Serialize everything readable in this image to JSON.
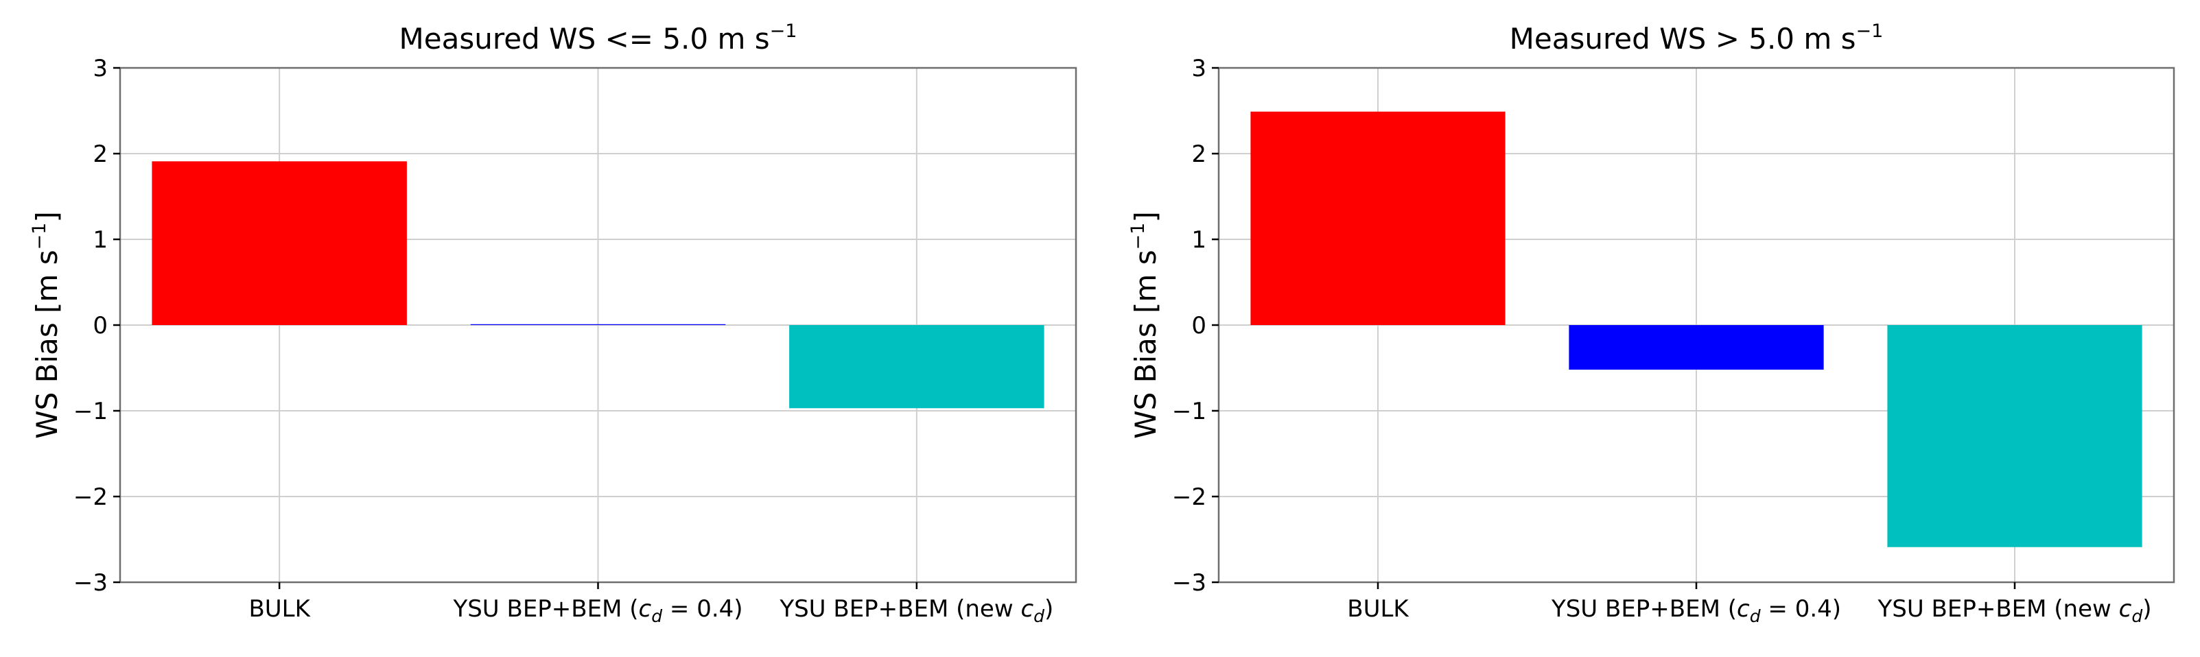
{
  "chart_data": [
    {
      "type": "bar",
      "title": "Measured WS <= 5.0 m s",
      "title_superscript": "−1",
      "ylabel": "WS Bias [m s",
      "ylabel_superscript": "−1",
      "ylabel_suffix": "]",
      "ylim": [
        -3,
        3
      ],
      "yticks": [
        -3,
        -2,
        -1,
        0,
        1,
        2,
        3
      ],
      "ytick_labels": [
        "−3",
        "−2",
        "−1",
        "0",
        "1",
        "2",
        "3"
      ],
      "grid": true,
      "categories": [
        {
          "text": "BULK"
        },
        {
          "text": "YSU BEP+BEM (",
          "math": "c",
          "math_sub": "d",
          "math_rest": " = 0.4",
          "suffix": ")"
        },
        {
          "text": "YSU BEP+BEM (new ",
          "math": "c",
          "math_sub": "d",
          "math_rest": "",
          "suffix": ")"
        }
      ],
      "values": [
        1.91,
        0.01,
        -0.97
      ],
      "colors": [
        "#ff0000",
        "#0000ff",
        "#00bfbf"
      ]
    },
    {
      "type": "bar",
      "title": "Measured WS > 5.0 m s",
      "title_superscript": "−1",
      "ylabel": "WS Bias [m s",
      "ylabel_superscript": "−1",
      "ylabel_suffix": "]",
      "ylim": [
        -3,
        3
      ],
      "yticks": [
        -3,
        -2,
        -1,
        0,
        1,
        2,
        3
      ],
      "ytick_labels": [
        "−3",
        "−2",
        "−1",
        "0",
        "1",
        "2",
        "3"
      ],
      "grid": true,
      "categories": [
        {
          "text": "BULK"
        },
        {
          "text": "YSU BEP+BEM (",
          "math": "c",
          "math_sub": "d",
          "math_rest": " = 0.4",
          "suffix": ")"
        },
        {
          "text": "YSU BEP+BEM (new ",
          "math": "c",
          "math_sub": "d",
          "math_rest": "",
          "suffix": ")"
        }
      ],
      "values": [
        2.49,
        -0.52,
        -2.59
      ],
      "colors": [
        "#ff0000",
        "#0000ff",
        "#00bfbf"
      ]
    }
  ]
}
